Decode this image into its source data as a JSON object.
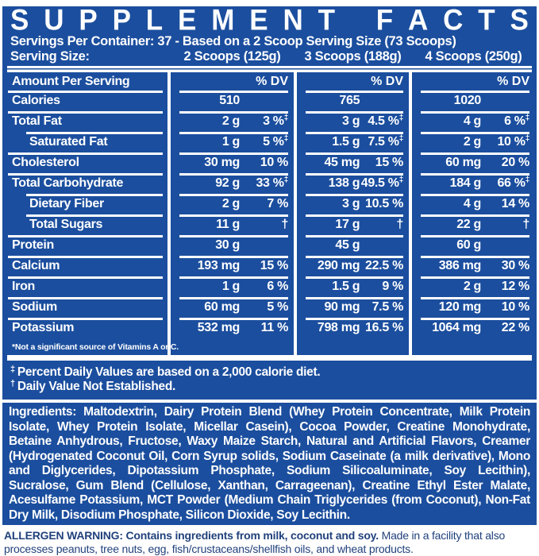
{
  "colors": {
    "panel_blue": "#1b4e9e",
    "text_white": "#ffffff",
    "allergen_text_blue": "#21417c",
    "page_background": "#ffffff"
  },
  "header": {
    "title": "SUPPLEMENT FACTS",
    "servings_line": "Servings Per Container: 37 - Based on a 2 Scoop Serving Size (73 Scoops)",
    "serving_size_label": "Serving Size:",
    "serving_sizes": [
      "2 Scoops (125g)",
      "3 Scoops (188g)",
      "4 Scoops (250g)"
    ]
  },
  "table": {
    "amount_header": "Amount Per Serving",
    "dv_header": "% DV",
    "rows": [
      {
        "label": "Calories",
        "indent": false,
        "values": [
          {
            "amt": "510",
            "dv": ""
          },
          {
            "amt": "765",
            "dv": ""
          },
          {
            "amt": "1020",
            "dv": ""
          }
        ]
      },
      {
        "label": "Total Fat",
        "indent": false,
        "values": [
          {
            "amt": "2 g",
            "dv": "3 %‡"
          },
          {
            "amt": "3 g",
            "dv": "4.5 %‡"
          },
          {
            "amt": "4 g",
            "dv": "6 %‡"
          }
        ]
      },
      {
        "label": "Saturated Fat",
        "indent": true,
        "values": [
          {
            "amt": "1 g",
            "dv": "5 %‡"
          },
          {
            "amt": "1.5 g",
            "dv": "7.5 %‡"
          },
          {
            "amt": "2 g",
            "dv": "10 %‡"
          }
        ]
      },
      {
        "label": "Cholesterol",
        "indent": false,
        "values": [
          {
            "amt": "30 mg",
            "dv": "10 %"
          },
          {
            "amt": "45 mg",
            "dv": "15 %"
          },
          {
            "amt": "60 mg",
            "dv": "20 %"
          }
        ]
      },
      {
        "label": "Total Carbohydrate",
        "indent": false,
        "values": [
          {
            "amt": "92 g",
            "dv": "33 %‡"
          },
          {
            "amt": "138 g",
            "dv": "49.5 %‡"
          },
          {
            "amt": "184 g",
            "dv": "66 %‡"
          }
        ]
      },
      {
        "label": "Dietary Fiber",
        "indent": true,
        "values": [
          {
            "amt": "2 g",
            "dv": "7 %"
          },
          {
            "amt": "3 g",
            "dv": "10.5 %"
          },
          {
            "amt": "4 g",
            "dv": "14 %"
          }
        ]
      },
      {
        "label": "Total Sugars",
        "indent": true,
        "values": [
          {
            "amt": "11 g",
            "dv": "†"
          },
          {
            "amt": "17 g",
            "dv": "†"
          },
          {
            "amt": "22 g",
            "dv": "†"
          }
        ]
      },
      {
        "label": "Protein",
        "indent": false,
        "values": [
          {
            "amt": "30 g",
            "dv": ""
          },
          {
            "amt": "45 g",
            "dv": ""
          },
          {
            "amt": "60 g",
            "dv": ""
          }
        ]
      },
      {
        "label": "Calcium",
        "indent": false,
        "values": [
          {
            "amt": "193 mg",
            "dv": "15 %"
          },
          {
            "amt": "290 mg",
            "dv": "22.5 %"
          },
          {
            "amt": "386 mg",
            "dv": "30 %"
          }
        ]
      },
      {
        "label": "Iron",
        "indent": false,
        "values": [
          {
            "amt": "1 g",
            "dv": "6 %"
          },
          {
            "amt": "1.5 g",
            "dv": "9 %"
          },
          {
            "amt": "2 g",
            "dv": "12 %"
          }
        ]
      },
      {
        "label": "Sodium",
        "indent": false,
        "values": [
          {
            "amt": "60 mg",
            "dv": "5 %"
          },
          {
            "amt": "90 mg",
            "dv": "7.5 %"
          },
          {
            "amt": "120 mg",
            "dv": "10 %"
          }
        ]
      },
      {
        "label": "Potassium",
        "indent": false,
        "values": [
          {
            "amt": "532 mg",
            "dv": "11 %"
          },
          {
            "amt": "798 mg",
            "dv": "16.5 %"
          },
          {
            "amt": "1064 mg",
            "dv": "22 %"
          }
        ]
      }
    ],
    "footnote": "*Not a significant source of Vitamins A or C."
  },
  "footnotes": [
    {
      "symbol": "‡",
      "text": "Percent Daily Values are based on a 2,000 calorie diet."
    },
    {
      "symbol": "†",
      "text": "Daily Value Not Established."
    }
  ],
  "ingredients": {
    "label": "Ingredients:",
    "text": "Maltodextrin, Dairy Protein Blend (Whey Protein Concentrate, Milk Protein Isolate, Whey Protein Isolate, Micellar Casein), Cocoa Powder, Creatine Monohydrate, Betaine Anhydrous, Fructose, Waxy Maize Starch, Natural and Artificial Flavors, Creamer (Hydrogenated Coconut Oil, Corn Syrup solids, Sodium Caseinate (a milk derivative), Mono and Diglycerides, Dipotassium Phosphate, Sodium Silicoaluminate, Soy Lecithin), Sucralose, Gum Blend (Cellulose, Xanthan, Carrageenan), Creatine Ethyl Ester Malate, Acesulfame Potassium, MCT Powder (Medium Chain Triglycerides (from Coconut), Non-Fat Dry Milk, Disodium Phosphate, Silicon Dioxide, Soy Lecithin."
  },
  "allergen": {
    "bold": "ALLERGEN WARNING: Contains ingredients from milk, coconut and soy.",
    "regular": "Made in a facility that also processes peanuts, tree nuts, egg, fish/crustaceans/shellfish oils, and wheat products."
  }
}
